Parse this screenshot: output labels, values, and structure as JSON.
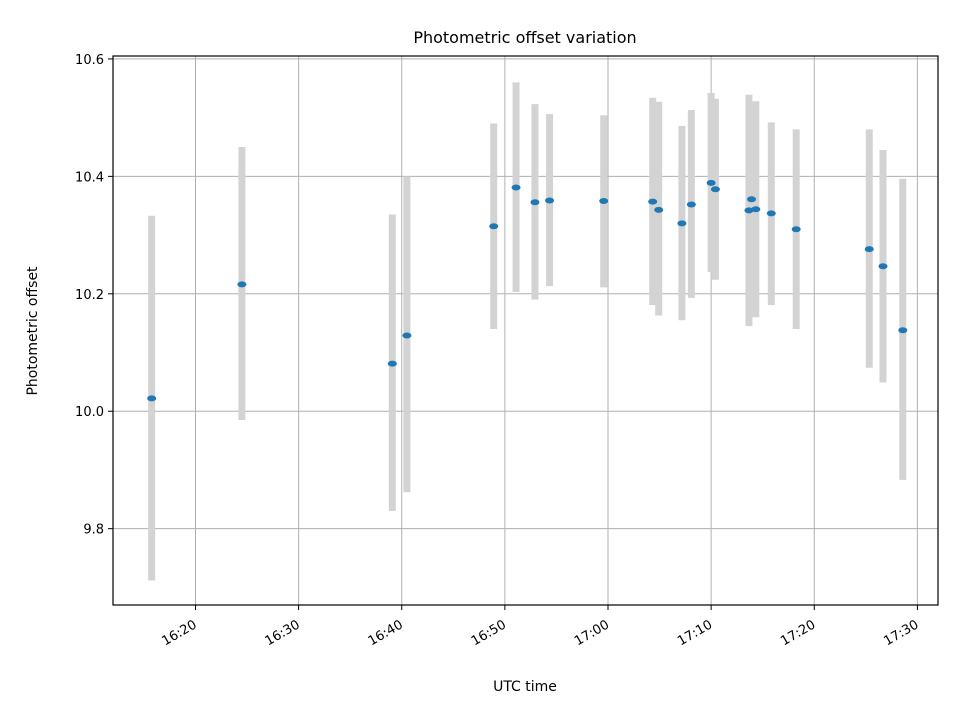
{
  "chart_data": {
    "type": "scatter",
    "title": "Photometric offset variation",
    "xlabel": "UTC time",
    "ylabel": "Photometric offset",
    "xlim": [
      "16:12",
      "17:32"
    ],
    "ylim": [
      9.67,
      10.605
    ],
    "x_ticks": [
      "16:20",
      "16:30",
      "16:40",
      "16:50",
      "17:00",
      "17:10",
      "17:20",
      "17:30"
    ],
    "y_ticks": [
      "9.8",
      "10.0",
      "10.2",
      "10.4",
      "10.6"
    ],
    "grid": true,
    "colors": {
      "point": "#1f77b4",
      "errorbar": "#d3d3d3",
      "grid": "#b0b0b0"
    },
    "points": [
      {
        "x": "16:15:45",
        "y": 10.022,
        "ylow": 9.712,
        "yhigh": 10.333
      },
      {
        "x": "16:24:30",
        "y": 10.216,
        "ylow": 9.985,
        "yhigh": 10.45
      },
      {
        "x": "16:39:05",
        "y": 10.081,
        "ylow": 9.83,
        "yhigh": 10.335
      },
      {
        "x": "16:40:30",
        "y": 10.129,
        "ylow": 9.862,
        "yhigh": 10.4
      },
      {
        "x": "16:48:55",
        "y": 10.315,
        "ylow": 10.14,
        "yhigh": 10.49
      },
      {
        "x": "16:51:05",
        "y": 10.381,
        "ylow": 10.203,
        "yhigh": 10.56
      },
      {
        "x": "16:52:55",
        "y": 10.356,
        "ylow": 10.19,
        "yhigh": 10.523
      },
      {
        "x": "16:54:20",
        "y": 10.359,
        "ylow": 10.213,
        "yhigh": 10.506
      },
      {
        "x": "16:59:35",
        "y": 10.358,
        "ylow": 10.211,
        "yhigh": 10.504
      },
      {
        "x": "17:04:20",
        "y": 10.357,
        "ylow": 10.181,
        "yhigh": 10.534
      },
      {
        "x": "17:04:55",
        "y": 10.343,
        "ylow": 10.163,
        "yhigh": 10.527
      },
      {
        "x": "17:07:10",
        "y": 10.32,
        "ylow": 10.155,
        "yhigh": 10.486
      },
      {
        "x": "17:08:05",
        "y": 10.352,
        "ylow": 10.193,
        "yhigh": 10.513
      },
      {
        "x": "17:10:00",
        "y": 10.389,
        "ylow": 10.237,
        "yhigh": 10.542
      },
      {
        "x": "17:10:25",
        "y": 10.378,
        "ylow": 10.224,
        "yhigh": 10.532
      },
      {
        "x": "17:13:40",
        "y": 10.342,
        "ylow": 10.145,
        "yhigh": 10.539
      },
      {
        "x": "17:13:55",
        "y": 10.361,
        "ylow": null,
        "yhigh": null
      },
      {
        "x": "17:14:20",
        "y": 10.344,
        "ylow": 10.16,
        "yhigh": 10.528
      },
      {
        "x": "17:15:50",
        "y": 10.337,
        "ylow": 10.181,
        "yhigh": 10.492
      },
      {
        "x": "17:18:15",
        "y": 10.31,
        "ylow": 10.14,
        "yhigh": 10.48
      },
      {
        "x": "17:25:20",
        "y": 10.276,
        "ylow": 10.074,
        "yhigh": 10.48
      },
      {
        "x": "17:26:40",
        "y": 10.247,
        "ylow": 10.049,
        "yhigh": 10.445
      },
      {
        "x": "17:28:35",
        "y": 10.138,
        "ylow": 9.883,
        "yhigh": 10.396
      }
    ]
  }
}
